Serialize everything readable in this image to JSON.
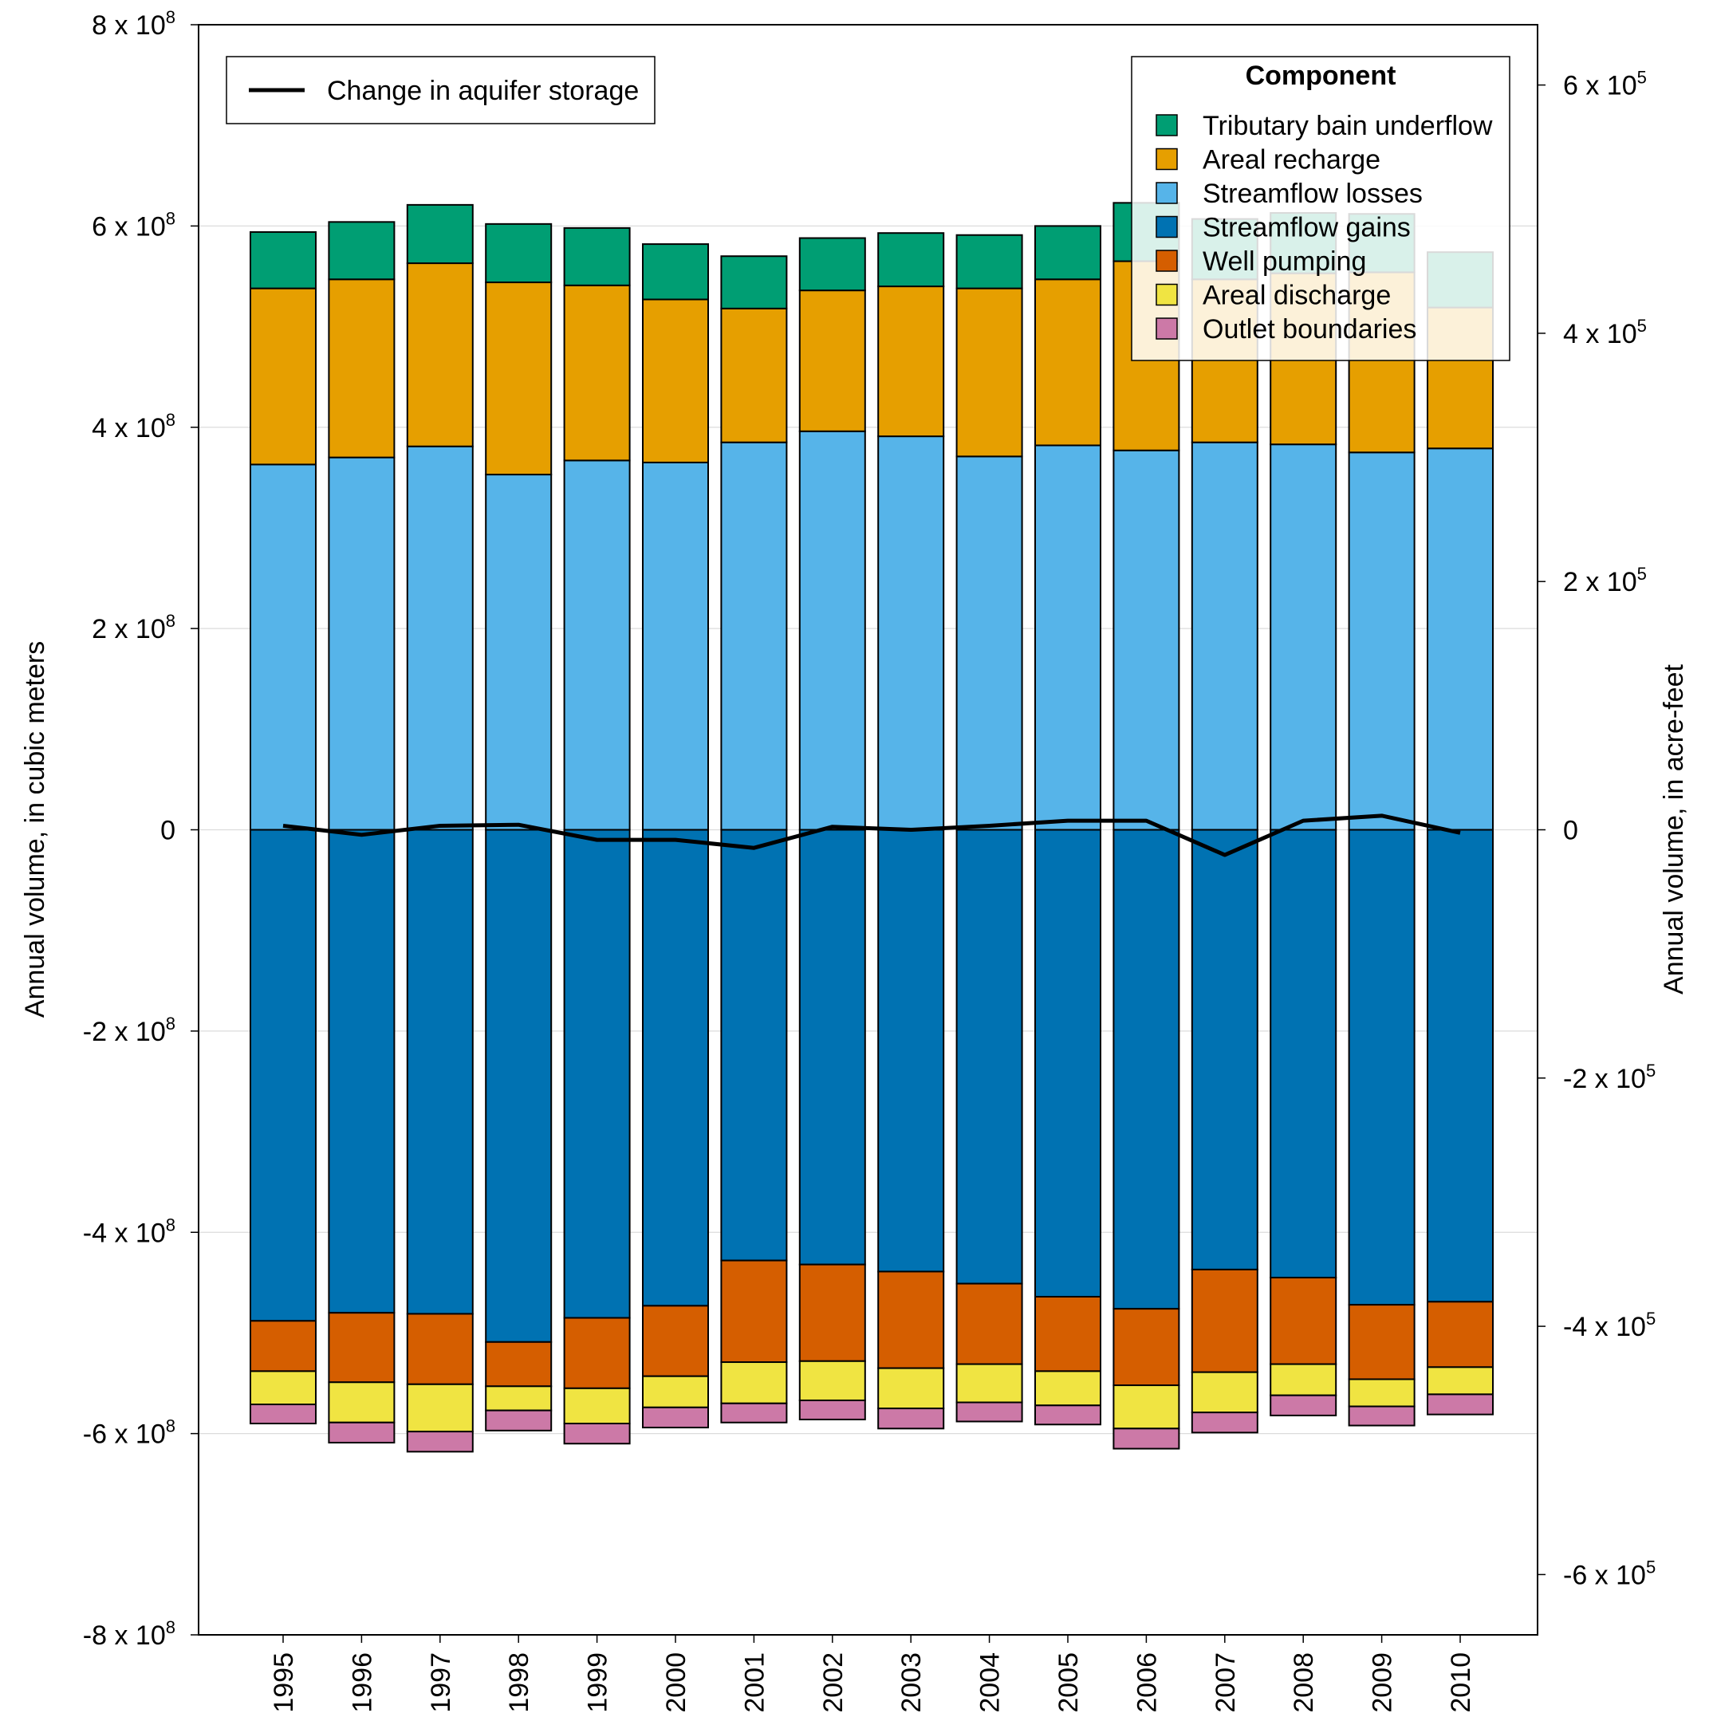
{
  "chart_data": {
    "type": "bar",
    "stacked": true,
    "categories": [
      "1995",
      "1996",
      "1997",
      "1998",
      "1999",
      "2000",
      "2001",
      "2002",
      "2003",
      "2004",
      "2005",
      "2006",
      "2007",
      "2008",
      "2009",
      "2010"
    ],
    "positive_series": [
      {
        "name": "Streamflow losses",
        "color": "#56B4E9",
        "values": [
          363000000.0,
          370000000.0,
          381000000.0,
          353000000.0,
          367000000.0,
          365000000.0,
          385000000.0,
          396000000.0,
          391000000.0,
          371000000.0,
          382000000.0,
          377000000.0,
          385000000.0,
          383000000.0,
          375000000.0,
          379000000.0
        ]
      },
      {
        "name": "Areal recharge",
        "color": "#E69F00",
        "values": [
          175000000.0,
          177000000.0,
          182000000.0,
          191000000.0,
          174000000.0,
          162000000.0,
          133000000.0,
          140000000.0,
          149000000.0,
          167000000.0,
          165000000.0,
          188000000.0,
          162000000.0,
          170000000.0,
          179000000.0,
          140000000.0
        ]
      },
      {
        "name": "Tributary bain underflow",
        "color": "#009E73",
        "values": [
          56000000.0,
          57000000.0,
          58000000.0,
          58000000.0,
          57000000.0,
          55000000.0,
          52000000.0,
          52000000.0,
          53000000.0,
          53000000.0,
          53000000.0,
          58000000.0,
          60000000.0,
          60000000.0,
          58000000.0,
          55000000.0
        ]
      }
    ],
    "negative_series": [
      {
        "name": "Streamflow gains",
        "color": "#0072B2",
        "values": [
          -488000000.0,
          -480000000.0,
          -481000000.0,
          -509000000.0,
          -485000000.0,
          -473000000.0,
          -428000000.0,
          -432000000.0,
          -439000000.0,
          -451000000.0,
          -464000000.0,
          -476000000.0,
          -437000000.0,
          -445000000.0,
          -472000000.0,
          -469000000.0
        ]
      },
      {
        "name": "Well pumping",
        "color": "#D55E00",
        "values": [
          -50000000.0,
          -69000000.0,
          -70000000.0,
          -44000000.0,
          -70000000.0,
          -70000000.0,
          -101000000.0,
          -96000000.0,
          -96000000.0,
          -80000000.0,
          -74000000.0,
          -76000000.0,
          -102000000.0,
          -86000000.0,
          -74000000.0,
          -65000000.0
        ]
      },
      {
        "name": "Areal discharge",
        "color": "#F0E442",
        "values": [
          -33000000.0,
          -40000000.0,
          -47000000.0,
          -24000000.0,
          -35000000.0,
          -31000000.0,
          -41000000.0,
          -39000000.0,
          -40000000.0,
          -38000000.0,
          -34000000.0,
          -43000000.0,
          -40000000.0,
          -31000000.0,
          -27000000.0,
          -27000000.0
        ]
      },
      {
        "name": "Outlet boundaries",
        "color": "#CC79A7",
        "values": [
          -19000000.0,
          -20000000.0,
          -20000000.0,
          -20000000.0,
          -20000000.0,
          -20000000.0,
          -19000000.0,
          -19000000.0,
          -20000000.0,
          -19000000.0,
          -19000000.0,
          -20000000.0,
          -20000000.0,
          -20000000.0,
          -19000000.0,
          -20000000.0
        ]
      }
    ],
    "line_series": {
      "name": "Change in aquifer storage",
      "color": "#000000",
      "values": [
        4000000.0,
        -5000000.0,
        4000000.0,
        5000000.0,
        -10000000.0,
        -10000000.0,
        -18000000.0,
        3000000.0,
        0.0,
        4000000.0,
        9000000.0,
        9000000.0,
        -25000000.0,
        9000000.0,
        14000000.0,
        -3000000.0
      ]
    },
    "left_axis": {
      "label": "Annual volume, in cubic meters",
      "ylim": [
        -800000000.0,
        800000000.0
      ],
      "ticks": [
        {
          "value": 800000000.0,
          "base": "8 x 10",
          "exp": "8"
        },
        {
          "value": 600000000.0,
          "base": "6 x 10",
          "exp": "8"
        },
        {
          "value": 400000000.0,
          "base": "4 x 10",
          "exp": "8"
        },
        {
          "value": 200000000.0,
          "base": "2 x 10",
          "exp": "8"
        },
        {
          "value": 0,
          "base": "0",
          "exp": ""
        },
        {
          "value": -200000000.0,
          "base": "-2 x 10",
          "exp": "8"
        },
        {
          "value": -400000000.0,
          "base": "-4 x 10",
          "exp": "8"
        },
        {
          "value": -600000000.0,
          "base": "-6 x 10",
          "exp": "8"
        },
        {
          "value": -800000000.0,
          "base": "-8 x 10",
          "exp": "8"
        }
      ]
    },
    "right_axis": {
      "label": "Annual volume, in acre-feet",
      "ticks": [
        {
          "value": 600000.0,
          "base": "6 x 10",
          "exp": "5"
        },
        {
          "value": 400000.0,
          "base": "4 x 10",
          "exp": "5"
        },
        {
          "value": 200000.0,
          "base": "2 x 10",
          "exp": "5"
        },
        {
          "value": 0,
          "base": "0",
          "exp": ""
        },
        {
          "value": -200000.0,
          "base": "-2 x 10",
          "exp": "5"
        },
        {
          "value": -400000.0,
          "base": "-4 x 10",
          "exp": "5"
        },
        {
          "value": -600000.0,
          "base": "-6 x 10",
          "exp": "5"
        }
      ]
    },
    "grid": true,
    "legend": {
      "title": "Component",
      "placement": "top-right",
      "items": [
        "Tributary bain underflow",
        "Areal recharge",
        "Streamflow losses",
        "Streamflow gains",
        "Well pumping",
        "Areal discharge",
        "Outlet boundaries"
      ]
    },
    "line_legend": {
      "placement": "top-left",
      "label": "Change in aquifer storage"
    }
  }
}
